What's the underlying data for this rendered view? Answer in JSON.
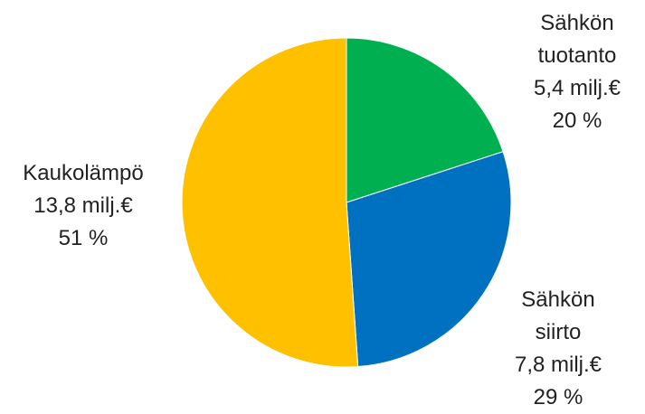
{
  "chart_data": {
    "type": "pie",
    "title": "",
    "start_angle_deg": 0,
    "direction": "clockwise",
    "slices": [
      {
        "label_lines": [
          "Sähkön",
          "tuotanto"
        ],
        "value_text": "5,4 milj.€",
        "percent_text": "20 %",
        "value": 5.4,
        "percent": 20,
        "color": "#00B050"
      },
      {
        "label_lines": [
          "Sähkön",
          "siirto"
        ],
        "value_text": "7,8 milj.€",
        "percent_text": "29 %",
        "value": 7.8,
        "percent": 29,
        "color": "#0070C0"
      },
      {
        "label_lines": [
          "Kaukolämpö"
        ],
        "value_text": "13,8 milj.€",
        "percent_text": "51 %",
        "value": 13.8,
        "percent": 51,
        "color": "#FFC000"
      }
    ]
  }
}
